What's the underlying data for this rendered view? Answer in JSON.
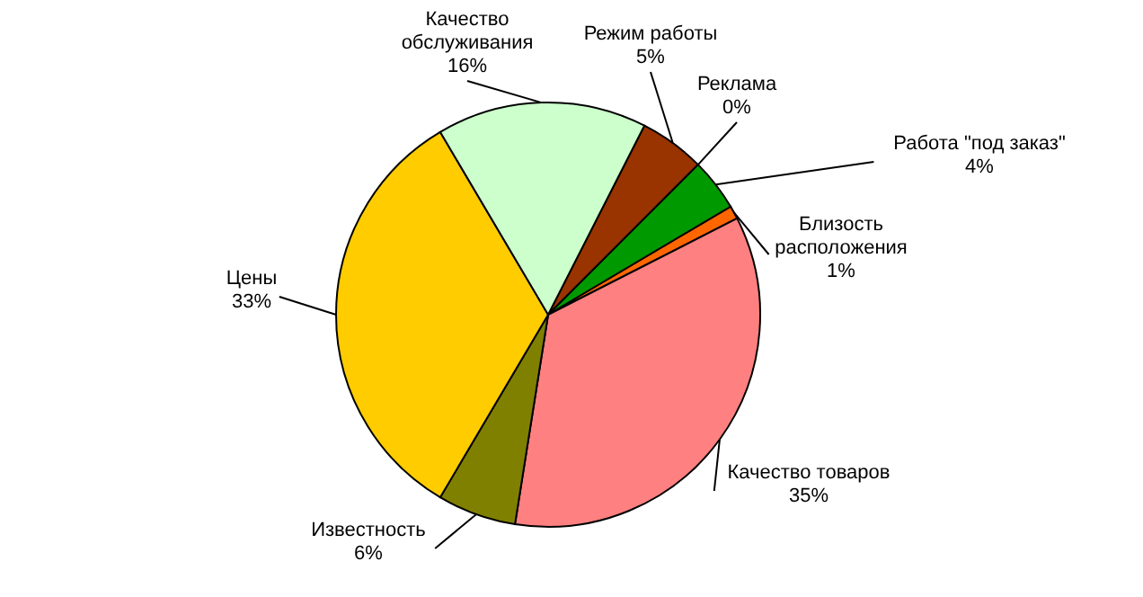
{
  "chart_data": {
    "type": "pie",
    "categories": [
      "Режим работы",
      "Реклама",
      "Работа \"под заказ\"",
      "Близость\nрасположения",
      "Качество товаров",
      "Известность",
      "Цены",
      "Качество\nобслуживания"
    ],
    "values": [
      5,
      0,
      4,
      1,
      35,
      6,
      33,
      16
    ],
    "value_labels": [
      "5%",
      "0%",
      "4%",
      "1%",
      "35%",
      "6%",
      "33%",
      "16%"
    ],
    "colors": [
      "#993300",
      "#000000",
      "#009900",
      "#ff6600",
      "#ff8080",
      "#808000",
      "#ffcc00",
      "#ccffcc"
    ],
    "legend": false
  }
}
